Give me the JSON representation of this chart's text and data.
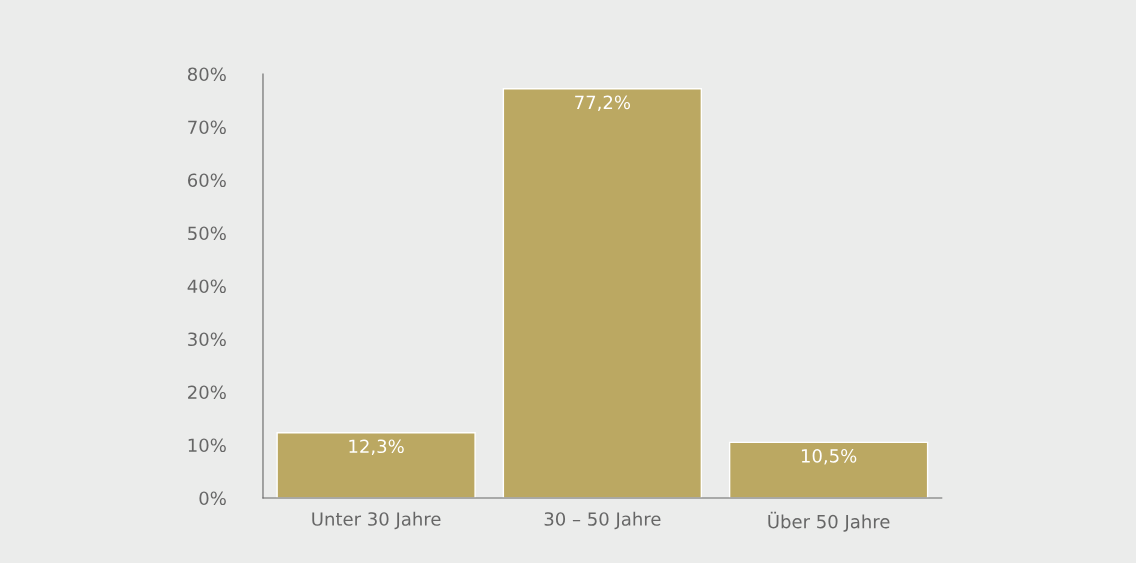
{
  "chart_data": {
    "type": "bar",
    "categories": [
      "Unter 30 Jahre",
      "30 – 50 Jahre",
      "Über 50 Jahre"
    ],
    "values": [
      12.3,
      77.2,
      10.5
    ],
    "value_labels": [
      "12,3%",
      "77,2%",
      "10,5%"
    ],
    "color": "#bba862",
    "ylim": [
      0,
      80
    ],
    "yticks": [
      {
        "value": 0,
        "label": "0%"
      },
      {
        "value": 10,
        "label": "10%"
      },
      {
        "value": 20,
        "label": "20%"
      },
      {
        "value": 30,
        "label": "30%"
      },
      {
        "value": 40,
        "label": "40%"
      },
      {
        "value": 50,
        "label": "50%"
      },
      {
        "value": 60,
        "label": "60%"
      },
      {
        "value": 70,
        "label": "70%"
      },
      {
        "value": 80,
        "label": "80%"
      }
    ],
    "grid": false,
    "legend": false
  }
}
